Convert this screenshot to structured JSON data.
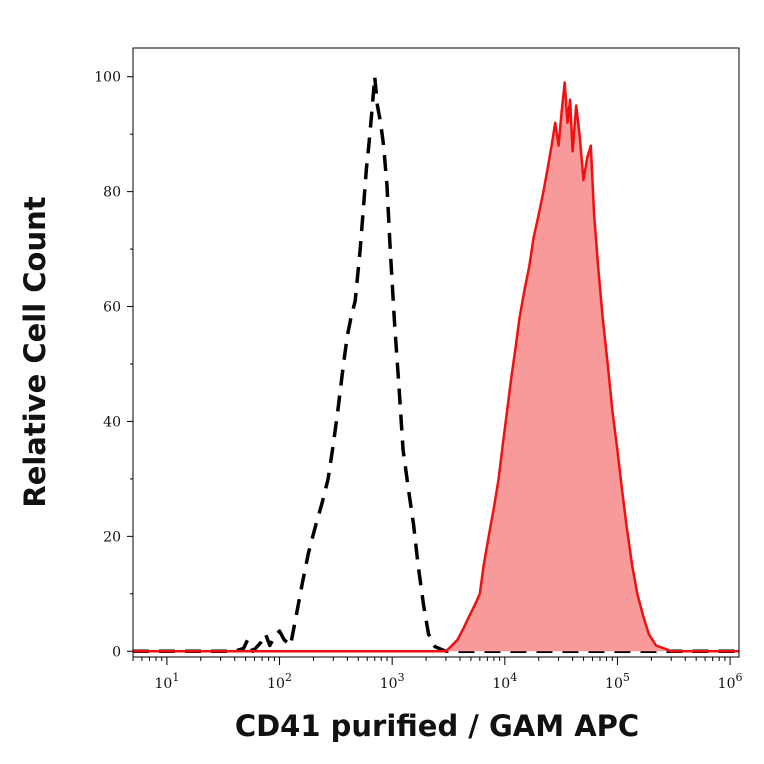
{
  "chart_data": {
    "type": "area",
    "xlabel": "CD41 purified / GAM APC",
    "ylabel": "Relative Cell Count",
    "x_scale": "log",
    "xlim": [
      5,
      1200000
    ],
    "ylim": [
      -1,
      105
    ],
    "x_ticks": [
      {
        "value": 10,
        "base": "10",
        "exp": "1"
      },
      {
        "value": 100,
        "base": "10",
        "exp": "2"
      },
      {
        "value": 1000,
        "base": "10",
        "exp": "3"
      },
      {
        "value": 10000,
        "base": "10",
        "exp": "4"
      },
      {
        "value": 100000,
        "base": "10",
        "exp": "5"
      },
      {
        "value": 1000000,
        "base": "10",
        "exp": "6"
      }
    ],
    "y_ticks": [
      {
        "value": 0,
        "label": "0"
      },
      {
        "value": 20,
        "label": "20"
      },
      {
        "value": 40,
        "label": "40"
      },
      {
        "value": 60,
        "label": "60"
      },
      {
        "value": 80,
        "label": "80"
      },
      {
        "value": 100,
        "label": "100"
      }
    ],
    "series": [
      {
        "style": "dashed",
        "color": "#000000",
        "points": [
          [
            5,
            0
          ],
          [
            40,
            0
          ],
          [
            48,
            0.5
          ],
          [
            52,
            2
          ],
          [
            58,
            0
          ],
          [
            68,
            1.5
          ],
          [
            75,
            3
          ],
          [
            82,
            1
          ],
          [
            90,
            2.5
          ],
          [
            100,
            3.5
          ],
          [
            110,
            2
          ],
          [
            125,
            1
          ],
          [
            140,
            6
          ],
          [
            160,
            12
          ],
          [
            180,
            17
          ],
          [
            210,
            22
          ],
          [
            240,
            26
          ],
          [
            270,
            30
          ],
          [
            300,
            36
          ],
          [
            330,
            42
          ],
          [
            370,
            50
          ],
          [
            400,
            55
          ],
          [
            430,
            58
          ],
          [
            470,
            61
          ],
          [
            520,
            70
          ],
          [
            560,
            78
          ],
          [
            590,
            84
          ],
          [
            620,
            88
          ],
          [
            660,
            94
          ],
          [
            700,
            100
          ],
          [
            740,
            95
          ],
          [
            790,
            92
          ],
          [
            840,
            88
          ],
          [
            900,
            81
          ],
          [
            960,
            70
          ],
          [
            1050,
            57
          ],
          [
            1150,
            46
          ],
          [
            1250,
            35
          ],
          [
            1400,
            28
          ],
          [
            1550,
            22
          ],
          [
            1700,
            15
          ],
          [
            1900,
            8
          ],
          [
            2100,
            3
          ],
          [
            2400,
            0.8
          ],
          [
            3000,
            0
          ],
          [
            10000,
            0
          ],
          [
            50000,
            0
          ],
          [
            200000,
            0
          ],
          [
            1200000,
            0
          ]
        ]
      },
      {
        "style": "filled",
        "color": "#ee1111",
        "fill_color": "#f99a9a",
        "points": [
          [
            5,
            0
          ],
          [
            3000,
            0
          ],
          [
            3400,
            1
          ],
          [
            3800,
            2
          ],
          [
            4300,
            4
          ],
          [
            4800,
            6
          ],
          [
            5400,
            8
          ],
          [
            6000,
            10
          ],
          [
            6500,
            15
          ],
          [
            7200,
            20
          ],
          [
            8000,
            25
          ],
          [
            8800,
            30
          ],
          [
            9600,
            36
          ],
          [
            10500,
            42
          ],
          [
            11500,
            48
          ],
          [
            12500,
            53
          ],
          [
            13500,
            58
          ],
          [
            15000,
            63
          ],
          [
            16500,
            67
          ],
          [
            18000,
            72
          ],
          [
            20000,
            76
          ],
          [
            22000,
            80
          ],
          [
            24000,
            84
          ],
          [
            26000,
            88
          ],
          [
            28000,
            92
          ],
          [
            30000,
            88
          ],
          [
            32000,
            94
          ],
          [
            34000,
            99
          ],
          [
            36000,
            92
          ],
          [
            38000,
            96
          ],
          [
            40000,
            87
          ],
          [
            43000,
            95
          ],
          [
            46000,
            90
          ],
          [
            50000,
            82
          ],
          [
            54000,
            86
          ],
          [
            58000,
            88
          ],
          [
            62000,
            76
          ],
          [
            68000,
            66
          ],
          [
            74000,
            58
          ],
          [
            82000,
            50
          ],
          [
            90000,
            42
          ],
          [
            100000,
            35
          ],
          [
            110000,
            28
          ],
          [
            120000,
            22
          ],
          [
            135000,
            15
          ],
          [
            150000,
            10
          ],
          [
            170000,
            6
          ],
          [
            190000,
            3
          ],
          [
            220000,
            1
          ],
          [
            260000,
            0.5
          ],
          [
            300000,
            0
          ],
          [
            1200000,
            0
          ]
        ]
      }
    ]
  }
}
